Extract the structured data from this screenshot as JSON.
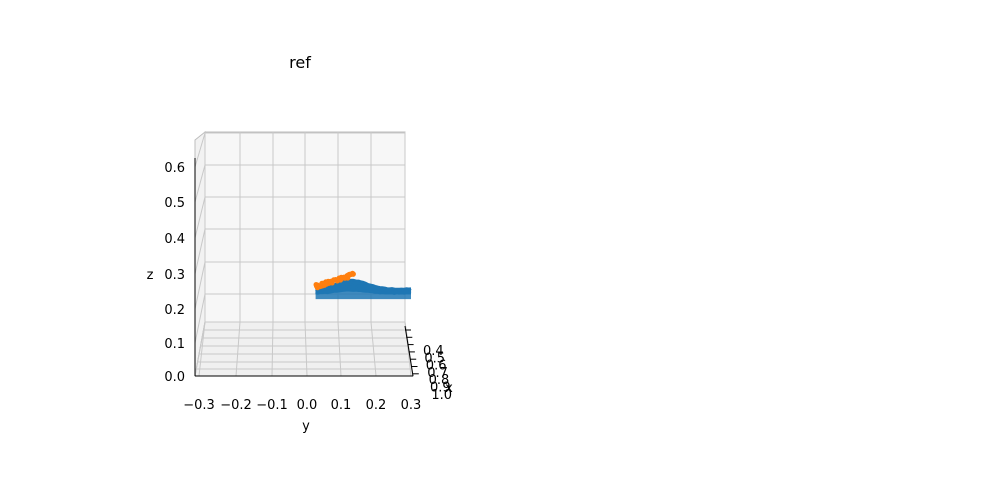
{
  "chart_data": {
    "type": "scatter",
    "title": "ref",
    "projection": "3d",
    "xlabel": "x",
    "ylabel": "y",
    "zlabel": "z",
    "x_ticks": [
      "0.4",
      "0.5",
      "0.6",
      "0.7",
      "0.8",
      "0.9",
      "1.0"
    ],
    "y_ticks": [
      "−0.3",
      "−0.2",
      "−0.1",
      "0.0",
      "0.1",
      "0.2",
      "0.3"
    ],
    "z_ticks": [
      "0.0",
      "0.1",
      "0.2",
      "0.3",
      "0.4",
      "0.5",
      "0.6"
    ],
    "ylim": [
      -0.3,
      0.3
    ],
    "zlim": [
      0.0,
      0.65
    ],
    "grid": true,
    "series": [
      {
        "color": "#1f77b4",
        "y_range": [
          0.03,
          0.3
        ],
        "z_range": [
          0.18,
          0.25
        ]
      },
      {
        "color": "#ff7f0e",
        "y_range": [
          0.03,
          0.14
        ],
        "z_range": [
          0.2,
          0.3
        ]
      }
    ]
  }
}
